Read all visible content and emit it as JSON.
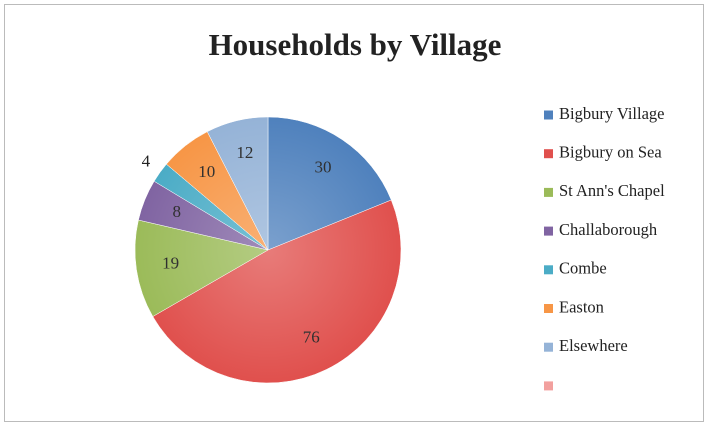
{
  "chart_data": {
    "type": "pie",
    "title": "Households by Village",
    "categories": [
      "Bigbury Village",
      "Bigbury on Sea",
      "St Ann's Chapel",
      "Challaborough",
      "Combe",
      "Easton",
      "Elsewhere",
      null
    ],
    "values": [
      30,
      76,
      19,
      8,
      4,
      10,
      12,
      null
    ],
    "colors": [
      "#4f81bd",
      "#e0504d",
      "#9bbb59",
      "#8064a2",
      "#4bacc6",
      "#f79646",
      "#95b3d7",
      "#f2a09e"
    ],
    "legend": "right"
  }
}
